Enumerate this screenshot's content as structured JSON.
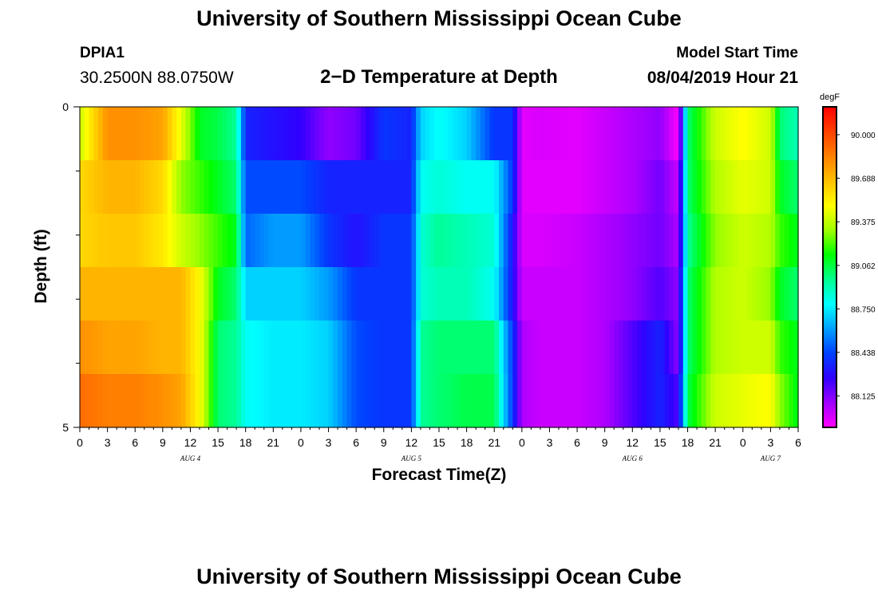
{
  "header": {
    "title": "University of Southern Mississippi Ocean Cube",
    "footer_title": "University of Southern Mississippi Ocean Cube",
    "station_id": "DPIA1",
    "coordinates": "30.2500N 88.0750W",
    "plot_title": "2−D Temperature at Depth",
    "model_start_label": "Model Start Time",
    "model_start_value": "08/04/2019 Hour 21"
  },
  "chart_data": {
    "type": "heatmap",
    "xlabel": "Forecast Time(Z)",
    "ylabel": "Depth (ft)",
    "x_hours": [
      0,
      3,
      6,
      9,
      12,
      15,
      18,
      21,
      24,
      27,
      30,
      33,
      36,
      39,
      42,
      45,
      48,
      51,
      54,
      57,
      60,
      63,
      66,
      69,
      72,
      75,
      78
    ],
    "x_tick_labels": [
      "0",
      "3",
      "6",
      "9",
      "12",
      "15",
      "18",
      "21",
      "0",
      "3",
      "6",
      "9",
      "12",
      "15",
      "18",
      "21",
      "0",
      "3",
      "6",
      "9",
      "12",
      "15",
      "18",
      "21",
      "0",
      "3",
      "6"
    ],
    "day_labels": [
      {
        "hour": 12,
        "label": "AUG  4"
      },
      {
        "hour": 36,
        "label": "AUG  5"
      },
      {
        "hour": 60,
        "label": "AUG  6"
      },
      {
        "hour": 75,
        "label": "AUG  7"
      }
    ],
    "x_range": [
      0,
      78
    ],
    "y_range": [
      0,
      5
    ],
    "y_tick_labels": [
      "0",
      "5"
    ],
    "depths_ft": [
      0,
      1,
      2,
      3,
      4,
      5
    ],
    "colorbar": {
      "unit": "degF",
      "labels": [
        "90.000",
        "89.688",
        "89.375",
        "89.062",
        "88.750",
        "88.438",
        "88.125"
      ],
      "min": 87.9,
      "max": 90.2,
      "colors": [
        "#ff00ff",
        "#a000ff",
        "#3000ff",
        "#0040ff",
        "#00a0ff",
        "#00ffff",
        "#00ff90",
        "#00ff00",
        "#a0ff00",
        "#ffff00",
        "#ffc000",
        "#ff8000",
        "#ff4000",
        "#ff0000"
      ]
    },
    "keyframes_hours": [
      0,
      3,
      6,
      9,
      11,
      13,
      15,
      17,
      18,
      21,
      24,
      27,
      30,
      33,
      36,
      37,
      39,
      42,
      45,
      47,
      48,
      50,
      54,
      57,
      60,
      63,
      65,
      66,
      69,
      72,
      75,
      76,
      78
    ],
    "keyframe_values_degF": [
      [
        89.4,
        89.8,
        89.8,
        89.75,
        89.45,
        89.1,
        89.05,
        88.95,
        88.35,
        88.3,
        88.25,
        88.1,
        88.15,
        88.4,
        88.35,
        88.7,
        88.8,
        88.7,
        88.4,
        88.4,
        87.95,
        87.97,
        87.95,
        88.0,
        88.05,
        88.1,
        87.9,
        89.0,
        89.4,
        89.5,
        89.4,
        89.0,
        88.9
      ],
      [
        89.6,
        89.7,
        89.7,
        89.6,
        89.3,
        89.2,
        89.1,
        89.0,
        88.45,
        88.45,
        88.45,
        88.35,
        88.35,
        88.35,
        88.35,
        88.8,
        88.85,
        88.8,
        88.8,
        88.4,
        87.95,
        87.95,
        87.95,
        88.0,
        88.05,
        88.15,
        88.0,
        89.0,
        89.35,
        89.45,
        89.4,
        89.1,
        89.0
      ],
      [
        89.6,
        89.65,
        89.65,
        89.55,
        89.4,
        89.3,
        89.2,
        89.1,
        88.5,
        88.6,
        88.6,
        88.4,
        88.3,
        88.4,
        88.4,
        88.85,
        88.95,
        88.9,
        88.85,
        88.3,
        87.97,
        87.97,
        88.0,
        88.05,
        88.1,
        88.15,
        88.05,
        88.95,
        89.3,
        89.4,
        89.35,
        89.2,
        89.1
      ],
      [
        89.7,
        89.7,
        89.7,
        89.7,
        89.7,
        89.5,
        89.1,
        89.0,
        88.7,
        88.7,
        88.7,
        88.6,
        88.4,
        88.4,
        88.4,
        88.85,
        88.9,
        88.9,
        88.8,
        88.3,
        88.0,
        88.0,
        88.0,
        88.05,
        88.1,
        88.2,
        88.1,
        89.0,
        89.35,
        89.4,
        89.3,
        89.1,
        89.0
      ],
      [
        89.8,
        89.75,
        89.75,
        89.7,
        89.7,
        89.5,
        89.0,
        88.95,
        88.8,
        88.75,
        88.75,
        88.7,
        88.45,
        88.4,
        88.4,
        88.95,
        89.0,
        89.0,
        89.0,
        88.4,
        88.05,
        88.0,
        88.0,
        88.05,
        88.2,
        88.35,
        88.1,
        89.0,
        89.35,
        89.4,
        89.4,
        89.2,
        89.1
      ],
      [
        89.9,
        89.85,
        89.85,
        89.8,
        89.75,
        89.5,
        89.0,
        88.95,
        88.8,
        88.75,
        88.75,
        88.7,
        88.45,
        88.4,
        88.4,
        88.95,
        89.0,
        89.05,
        89.05,
        88.4,
        88.05,
        88.0,
        88.0,
        88.05,
        88.2,
        88.35,
        88.2,
        89.05,
        89.4,
        89.45,
        89.5,
        89.3,
        89.1
      ]
    ]
  }
}
